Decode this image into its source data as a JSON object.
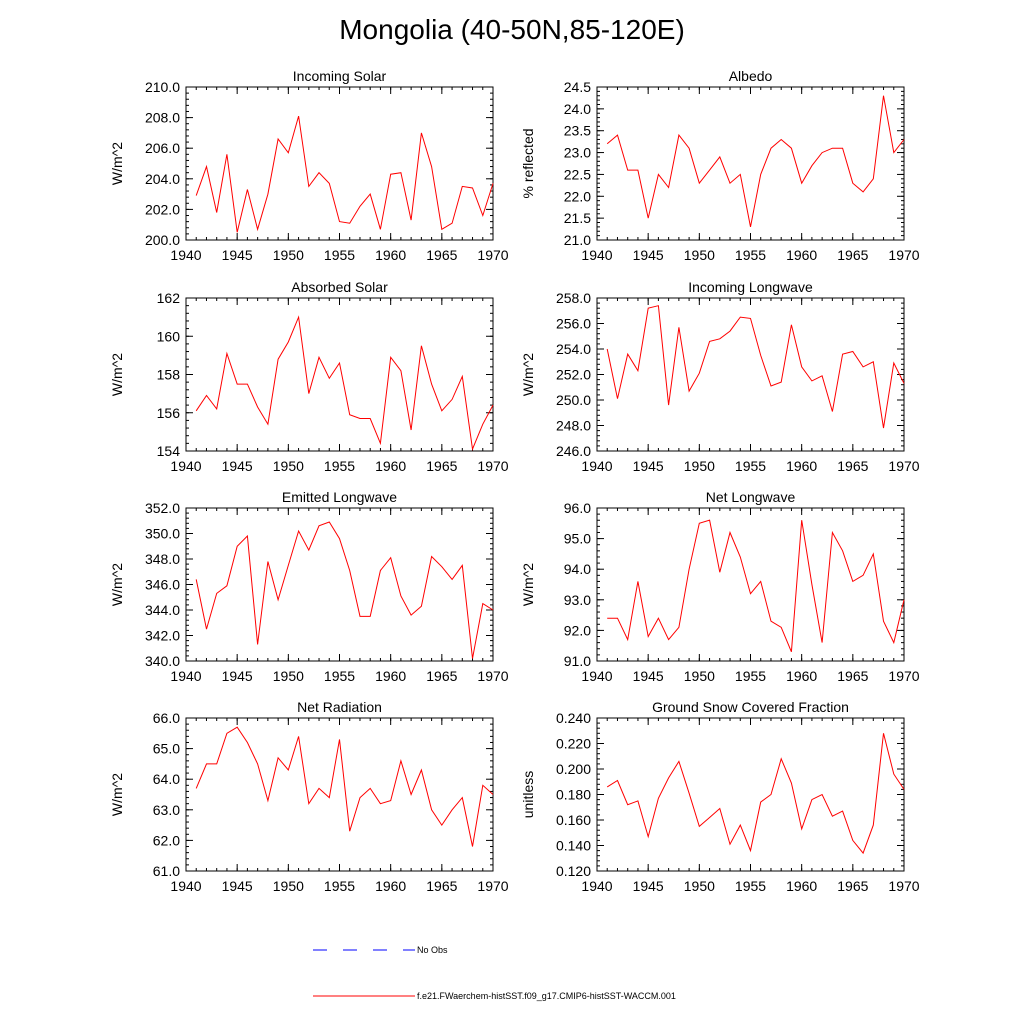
{
  "figure": {
    "title": "Mongolia (40-50N,85-120E)"
  },
  "legend": {
    "no_obs_label": "No Obs",
    "model_label": "f.e21.FWaerchem-histSST.f09_g17.CMIP6-histSST-WACCM.001",
    "no_obs_color": "#0000ff",
    "model_color": "#ff0000"
  },
  "chart_data": [
    {
      "type": "line",
      "title": "Incoming Solar",
      "ylabel": "W/m^2",
      "xlim": [
        1940,
        1970
      ],
      "ylim": [
        200,
        210
      ],
      "yticks": [
        200,
        202,
        204,
        206,
        208,
        210
      ],
      "ytick_labels": [
        "200.0",
        "202.0",
        "204.0",
        "206.0",
        "208.0",
        "210.0"
      ],
      "xticks": [
        1940,
        1945,
        1950,
        1955,
        1960,
        1965,
        1970
      ],
      "xtick_labels": [
        "1940",
        "1945",
        "1950",
        "1955",
        "1960",
        "1965",
        "1970"
      ],
      "x": [
        1941,
        1942,
        1943,
        1944,
        1945,
        1946,
        1947,
        1948,
        1949,
        1950,
        1951,
        1952,
        1953,
        1954,
        1955,
        1956,
        1957,
        1958,
        1959,
        1960,
        1961,
        1962,
        1963,
        1964,
        1965,
        1966,
        1967,
        1968,
        1969,
        1970
      ],
      "series": [
        {
          "values": [
            202.9,
            204.8,
            201.8,
            205.6,
            200.5,
            203.3,
            200.7,
            203.0,
            206.6,
            205.7,
            208.1,
            203.5,
            204.4,
            203.7,
            201.2,
            201.1,
            202.2,
            203.0,
            200.7,
            204.3,
            204.4,
            201.3,
            207.0,
            204.8,
            200.7,
            201.1,
            203.5,
            203.4,
            201.6,
            203.7
          ]
        }
      ]
    },
    {
      "type": "line",
      "title": "Albedo",
      "ylabel": "% reflected",
      "xlim": [
        1940,
        1970
      ],
      "ylim": [
        21.0,
        24.5
      ],
      "yticks": [
        21.0,
        21.5,
        22.0,
        22.5,
        23.0,
        23.5,
        24.0,
        24.5
      ],
      "ytick_labels": [
        "21.0",
        "21.5",
        "22.0",
        "22.5",
        "23.0",
        "23.5",
        "24.0",
        "24.5"
      ],
      "xticks": [
        1940,
        1945,
        1950,
        1955,
        1960,
        1965,
        1970
      ],
      "xtick_labels": [
        "1940",
        "1945",
        "1950",
        "1955",
        "1960",
        "1965",
        "1970"
      ],
      "x": [
        1941,
        1942,
        1943,
        1944,
        1945,
        1946,
        1947,
        1948,
        1949,
        1950,
        1951,
        1952,
        1953,
        1954,
        1955,
        1956,
        1957,
        1958,
        1959,
        1960,
        1961,
        1962,
        1963,
        1964,
        1965,
        1966,
        1967,
        1968,
        1969,
        1970
      ],
      "series": [
        {
          "values": [
            23.2,
            23.4,
            22.6,
            22.6,
            21.5,
            22.5,
            22.2,
            23.4,
            23.1,
            22.3,
            22.6,
            22.9,
            22.3,
            22.5,
            21.3,
            22.5,
            23.1,
            23.3,
            23.1,
            22.3,
            22.7,
            23.0,
            23.1,
            23.1,
            22.3,
            22.1,
            22.4,
            24.3,
            23.0,
            23.3
          ]
        }
      ]
    },
    {
      "type": "line",
      "title": "Absorbed Solar",
      "ylabel": "W/m^2",
      "xlim": [
        1940,
        1970
      ],
      "ylim": [
        154,
        162
      ],
      "yticks": [
        154,
        156,
        158,
        160,
        162
      ],
      "ytick_labels": [
        "154",
        "156",
        "158",
        "160",
        "162"
      ],
      "xticks": [
        1940,
        1945,
        1950,
        1955,
        1960,
        1965,
        1970
      ],
      "xtick_labels": [
        "1940",
        "1945",
        "1950",
        "1955",
        "1960",
        "1965",
        "1970"
      ],
      "x": [
        1941,
        1942,
        1943,
        1944,
        1945,
        1946,
        1947,
        1948,
        1949,
        1950,
        1951,
        1952,
        1953,
        1954,
        1955,
        1956,
        1957,
        1958,
        1959,
        1960,
        1961,
        1962,
        1963,
        1964,
        1965,
        1966,
        1967,
        1968,
        1969,
        1970
      ],
      "series": [
        {
          "values": [
            156.1,
            156.9,
            156.2,
            159.1,
            157.5,
            157.5,
            156.3,
            155.4,
            158.8,
            159.7,
            161.0,
            157.0,
            158.9,
            157.8,
            158.6,
            155.9,
            155.7,
            155.7,
            154.4,
            158.9,
            158.2,
            155.1,
            159.5,
            157.5,
            156.1,
            156.7,
            157.9,
            154.1,
            155.4,
            156.4
          ]
        }
      ]
    },
    {
      "type": "line",
      "title": "Incoming Longwave",
      "ylabel": "W/m^2",
      "xlim": [
        1940,
        1970
      ],
      "ylim": [
        246,
        258
      ],
      "yticks": [
        246,
        248,
        250,
        252,
        254,
        256,
        258
      ],
      "ytick_labels": [
        "246.0",
        "248.0",
        "250.0",
        "252.0",
        "254.0",
        "256.0",
        "258.0"
      ],
      "xticks": [
        1940,
        1945,
        1950,
        1955,
        1960,
        1965,
        1970
      ],
      "xtick_labels": [
        "1940",
        "1945",
        "1950",
        "1955",
        "1960",
        "1965",
        "1970"
      ],
      "x": [
        1941,
        1942,
        1943,
        1944,
        1945,
        1946,
        1947,
        1948,
        1949,
        1950,
        1951,
        1952,
        1953,
        1954,
        1955,
        1956,
        1957,
        1958,
        1959,
        1960,
        1961,
        1962,
        1963,
        1964,
        1965,
        1966,
        1967,
        1968,
        1969,
        1970
      ],
      "series": [
        {
          "values": [
            254.0,
            250.1,
            253.6,
            252.3,
            257.2,
            257.4,
            249.6,
            255.7,
            250.7,
            252.1,
            254.6,
            254.8,
            255.4,
            256.5,
            256.4,
            253.5,
            251.1,
            251.4,
            255.9,
            252.6,
            251.5,
            251.9,
            249.1,
            253.6,
            253.8,
            252.6,
            253.0,
            247.8,
            252.9,
            251.3
          ]
        }
      ]
    },
    {
      "type": "line",
      "title": "Emitted Longwave",
      "ylabel": "W/m^2",
      "xlim": [
        1940,
        1970
      ],
      "ylim": [
        340,
        352
      ],
      "yticks": [
        340,
        342,
        344,
        346,
        348,
        350,
        352
      ],
      "ytick_labels": [
        "340.0",
        "342.0",
        "344.0",
        "346.0",
        "348.0",
        "350.0",
        "352.0"
      ],
      "xticks": [
        1940,
        1945,
        1950,
        1955,
        1960,
        1965,
        1970
      ],
      "xtick_labels": [
        "1940",
        "1945",
        "1950",
        "1955",
        "1960",
        "1965",
        "1970"
      ],
      "x": [
        1941,
        1942,
        1943,
        1944,
        1945,
        1946,
        1947,
        1948,
        1949,
        1950,
        1951,
        1952,
        1953,
        1954,
        1955,
        1956,
        1957,
        1958,
        1959,
        1960,
        1961,
        1962,
        1963,
        1964,
        1965,
        1966,
        1967,
        1968,
        1969,
        1970
      ],
      "series": [
        {
          "values": [
            346.4,
            342.5,
            345.3,
            345.9,
            349.0,
            349.8,
            341.3,
            347.8,
            344.8,
            347.5,
            350.2,
            348.7,
            350.6,
            350.9,
            349.6,
            347.1,
            343.5,
            343.5,
            347.1,
            348.1,
            345.1,
            343.6,
            344.3,
            348.2,
            347.4,
            346.4,
            347.5,
            340.2,
            344.5,
            344.0
          ]
        }
      ]
    },
    {
      "type": "line",
      "title": "Net Longwave",
      "ylabel": "W/m^2",
      "xlim": [
        1940,
        1970
      ],
      "ylim": [
        91.0,
        96.0
      ],
      "yticks": [
        91,
        92,
        93,
        94,
        95,
        96
      ],
      "ytick_labels": [
        "91.0",
        "92.0",
        "93.0",
        "94.0",
        "95.0",
        "96.0"
      ],
      "xticks": [
        1940,
        1945,
        1950,
        1955,
        1960,
        1965,
        1970
      ],
      "xtick_labels": [
        "1940",
        "1945",
        "1950",
        "1955",
        "1960",
        "1965",
        "1970"
      ],
      "x": [
        1941,
        1942,
        1943,
        1944,
        1945,
        1946,
        1947,
        1948,
        1949,
        1950,
        1951,
        1952,
        1953,
        1954,
        1955,
        1956,
        1957,
        1958,
        1959,
        1960,
        1961,
        1962,
        1963,
        1964,
        1965,
        1966,
        1967,
        1968,
        1969,
        1970
      ],
      "series": [
        {
          "values": [
            92.4,
            92.4,
            91.7,
            93.6,
            91.8,
            92.4,
            91.7,
            92.1,
            94.0,
            95.5,
            95.6,
            93.9,
            95.2,
            94.4,
            93.2,
            93.6,
            92.3,
            92.1,
            91.3,
            95.6,
            93.5,
            91.6,
            95.2,
            94.6,
            93.6,
            93.8,
            94.5,
            92.3,
            91.6,
            93.0
          ]
        }
      ]
    },
    {
      "type": "line",
      "title": "Net Radiation",
      "ylabel": "W/m^2",
      "xlim": [
        1940,
        1970
      ],
      "ylim": [
        61.0,
        66.0
      ],
      "yticks": [
        61,
        62,
        63,
        64,
        65,
        66
      ],
      "ytick_labels": [
        "61.0",
        "62.0",
        "63.0",
        "64.0",
        "65.0",
        "66.0"
      ],
      "xticks": [
        1940,
        1945,
        1950,
        1955,
        1960,
        1965,
        1970
      ],
      "xtick_labels": [
        "1940",
        "1945",
        "1950",
        "1955",
        "1960",
        "1965",
        "1970"
      ],
      "x": [
        1941,
        1942,
        1943,
        1944,
        1945,
        1946,
        1947,
        1948,
        1949,
        1950,
        1951,
        1952,
        1953,
        1954,
        1955,
        1956,
        1957,
        1958,
        1959,
        1960,
        1961,
        1962,
        1963,
        1964,
        1965,
        1966,
        1967,
        1968,
        1969,
        1970
      ],
      "series": [
        {
          "values": [
            63.7,
            64.5,
            64.5,
            65.5,
            65.7,
            65.2,
            64.5,
            63.3,
            64.7,
            64.3,
            65.4,
            63.2,
            63.7,
            63.4,
            65.3,
            62.3,
            63.4,
            63.7,
            63.2,
            63.3,
            64.6,
            63.5,
            64.3,
            63.0,
            62.5,
            63.0,
            63.4,
            61.8,
            63.8,
            63.5
          ]
        }
      ]
    },
    {
      "type": "line",
      "title": "Ground Snow Covered Fraction",
      "ylabel": "unitless",
      "xlim": [
        1940,
        1970
      ],
      "ylim": [
        0.12,
        0.24
      ],
      "yticks": [
        0.12,
        0.14,
        0.16,
        0.18,
        0.2,
        0.22,
        0.24
      ],
      "ytick_labels": [
        "0.120",
        "0.140",
        "0.160",
        "0.180",
        "0.200",
        "0.220",
        "0.240"
      ],
      "xticks": [
        1940,
        1945,
        1950,
        1955,
        1960,
        1965,
        1970
      ],
      "xtick_labels": [
        "1940",
        "1945",
        "1950",
        "1955",
        "1960",
        "1965",
        "1970"
      ],
      "x": [
        1941,
        1942,
        1943,
        1944,
        1945,
        1946,
        1947,
        1948,
        1949,
        1950,
        1951,
        1952,
        1953,
        1954,
        1955,
        1956,
        1957,
        1958,
        1959,
        1960,
        1961,
        1962,
        1963,
        1964,
        1965,
        1966,
        1967,
        1968,
        1969,
        1970
      ],
      "series": [
        {
          "values": [
            0.186,
            0.191,
            0.172,
            0.175,
            0.147,
            0.177,
            0.193,
            0.206,
            0.181,
            0.155,
            0.162,
            0.169,
            0.141,
            0.156,
            0.136,
            0.174,
            0.18,
            0.208,
            0.189,
            0.153,
            0.176,
            0.18,
            0.163,
            0.167,
            0.144,
            0.134,
            0.156,
            0.228,
            0.196,
            0.184
          ]
        }
      ]
    }
  ]
}
